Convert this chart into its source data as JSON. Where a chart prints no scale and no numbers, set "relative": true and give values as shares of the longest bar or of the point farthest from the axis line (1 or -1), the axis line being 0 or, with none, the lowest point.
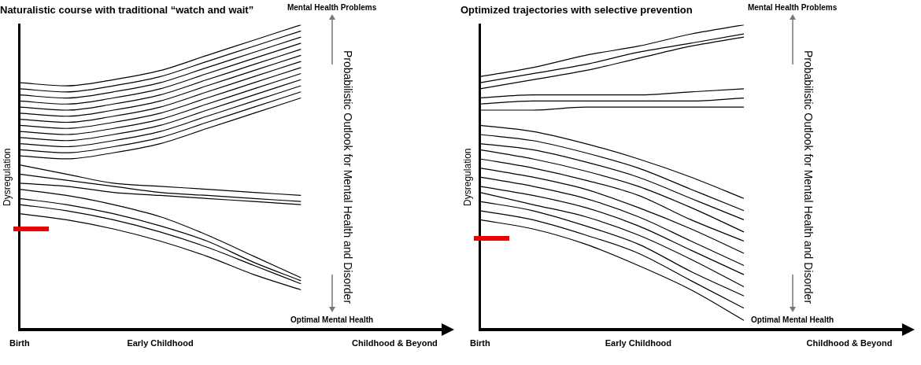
{
  "chart_data": [
    {
      "type": "line",
      "title": "Naturalistic course with traditional “watch and wait”",
      "ylabel": "Dysregulation",
      "relative": true,
      "marker": "none",
      "line_style": "solid",
      "categories": [
        "Birth",
        null,
        null,
        "Early Childhood",
        null,
        null,
        null,
        null,
        "Childhood & Beyond",
        null
      ],
      "annotations": [
        "Mental Health Problems",
        "Probabilistic Outlook for Mental Health and Disorder",
        "Optimal Mental Health"
      ],
      "series": [
        {
          "color": "#000000",
          "values": [
            0.81,
            0.8,
            0.82,
            0.85,
            0.9,
            0.95,
            1.0,
            null,
            null,
            null
          ]
        },
        {
          "color": "#000000",
          "values": [
            0.79,
            0.78,
            0.8,
            0.83,
            0.88,
            0.93,
            0.98,
            null,
            null,
            null
          ]
        },
        {
          "color": "#000000",
          "values": [
            0.77,
            0.76,
            0.78,
            0.81,
            0.86,
            0.91,
            0.96,
            null,
            null,
            null
          ]
        },
        {
          "color": "#000000",
          "values": [
            0.75,
            0.74,
            0.76,
            0.79,
            0.84,
            0.89,
            0.94,
            null,
            null,
            null
          ]
        },
        {
          "color": "#000000",
          "values": [
            0.73,
            0.72,
            0.74,
            0.77,
            0.82,
            0.87,
            0.92,
            null,
            null,
            null
          ]
        },
        {
          "color": "#000000",
          "values": [
            0.71,
            0.7,
            0.72,
            0.75,
            0.8,
            0.85,
            0.9,
            null,
            null,
            null
          ]
        },
        {
          "color": "#000000",
          "values": [
            0.69,
            0.68,
            0.7,
            0.73,
            0.78,
            0.83,
            0.88,
            null,
            null,
            null
          ]
        },
        {
          "color": "#000000",
          "values": [
            0.67,
            0.66,
            0.68,
            0.71,
            0.76,
            0.81,
            0.86,
            null,
            null,
            null
          ]
        },
        {
          "color": "#000000",
          "values": [
            0.65,
            0.64,
            0.66,
            0.69,
            0.74,
            0.79,
            0.84,
            null,
            null,
            null
          ]
        },
        {
          "color": "#000000",
          "values": [
            0.63,
            0.62,
            0.64,
            0.67,
            0.72,
            0.77,
            0.82,
            null,
            null,
            null
          ]
        },
        {
          "color": "#000000",
          "values": [
            0.61,
            0.6,
            0.62,
            0.65,
            0.7,
            0.75,
            0.8,
            null,
            null,
            null
          ]
        },
        {
          "color": "#000000",
          "values": [
            0.59,
            0.58,
            0.6,
            0.63,
            0.68,
            0.73,
            0.78,
            null,
            null,
            null
          ]
        },
        {
          "color": "#000000",
          "values": [
            0.57,
            0.56,
            0.58,
            0.61,
            0.66,
            0.71,
            0.76,
            null,
            null,
            null
          ]
        },
        {
          "color": "#000000",
          "values": [
            0.54,
            0.51,
            0.48,
            0.47,
            0.46,
            0.45,
            0.44,
            null,
            null,
            null
          ]
        },
        {
          "color": "#000000",
          "values": [
            0.51,
            0.49,
            0.47,
            0.45,
            0.44,
            0.43,
            0.42,
            null,
            null,
            null
          ]
        },
        {
          "color": "#000000",
          "values": [
            0.48,
            0.47,
            0.45,
            0.44,
            0.43,
            0.42,
            0.41,
            null,
            null,
            null
          ]
        },
        {
          "color": "#000000",
          "values": [
            0.46,
            0.44,
            0.41,
            0.37,
            0.31,
            0.24,
            0.17,
            null,
            null,
            null
          ]
        },
        {
          "color": "#000000",
          "values": [
            0.43,
            0.41,
            0.38,
            0.34,
            0.29,
            0.22,
            0.16,
            null,
            null,
            null
          ]
        },
        {
          "color": "#000000",
          "values": [
            0.41,
            0.39,
            0.36,
            0.32,
            0.27,
            0.21,
            0.15,
            null,
            null,
            null
          ]
        },
        {
          "color": "#000000",
          "values": [
            0.38,
            0.36,
            0.33,
            0.29,
            0.24,
            0.18,
            0.13,
            null,
            null,
            null
          ]
        }
      ]
    },
    {
      "type": "line",
      "title": "Optimized trajectories with selective prevention",
      "ylabel": "Dysregulation",
      "relative": true,
      "marker": "none",
      "line_style": "solid",
      "categories": [
        "Birth",
        null,
        null,
        "Early Childhood",
        null,
        null,
        null,
        "Childhood & Beyond",
        null
      ],
      "annotations": [
        "Mental Health Problems",
        "Probabilistic Outlook for Mental Health and Disorder",
        "Optimal Mental Health"
      ],
      "series": [
        {
          "color": "#000000",
          "values": [
            0.83,
            0.86,
            0.9,
            0.93,
            0.97,
            1.0,
            null,
            null,
            null
          ]
        },
        {
          "color": "#000000",
          "values": [
            0.81,
            0.84,
            0.87,
            0.91,
            0.94,
            0.97,
            null,
            null,
            null
          ]
        },
        {
          "color": "#000000",
          "values": [
            0.79,
            0.82,
            0.85,
            0.89,
            0.93,
            0.96,
            null,
            null,
            null
          ]
        },
        {
          "color": "#000000",
          "values": [
            0.76,
            0.77,
            0.77,
            0.77,
            0.78,
            0.79,
            null,
            null,
            null
          ]
        },
        {
          "color": "#000000",
          "values": [
            0.74,
            0.75,
            0.75,
            0.75,
            0.75,
            0.76,
            null,
            null,
            null
          ]
        },
        {
          "color": "#000000",
          "values": [
            0.72,
            0.72,
            0.73,
            0.73,
            0.73,
            0.73,
            null,
            null,
            null
          ]
        },
        {
          "color": "#000000",
          "values": [
            0.67,
            0.65,
            0.61,
            0.56,
            0.5,
            0.43,
            null,
            null,
            null
          ]
        },
        {
          "color": "#000000",
          "values": [
            0.64,
            0.62,
            0.58,
            0.53,
            0.46,
            0.39,
            null,
            null,
            null
          ]
        },
        {
          "color": "#000000",
          "values": [
            0.61,
            0.59,
            0.55,
            0.5,
            0.43,
            0.36,
            null,
            null,
            null
          ]
        },
        {
          "color": "#000000",
          "values": [
            0.59,
            0.56,
            0.52,
            0.47,
            0.4,
            0.32,
            null,
            null,
            null
          ]
        },
        {
          "color": "#000000",
          "values": [
            0.56,
            0.53,
            0.49,
            0.44,
            0.36,
            0.29,
            null,
            null,
            null
          ]
        },
        {
          "color": "#000000",
          "values": [
            0.53,
            0.5,
            0.46,
            0.4,
            0.33,
            0.25,
            null,
            null,
            null
          ]
        },
        {
          "color": "#000000",
          "values": [
            0.5,
            0.47,
            0.43,
            0.37,
            0.29,
            0.21,
            null,
            null,
            null
          ]
        },
        {
          "color": "#000000",
          "values": [
            0.47,
            0.44,
            0.4,
            0.34,
            0.26,
            0.18,
            null,
            null,
            null
          ]
        },
        {
          "color": "#000000",
          "values": [
            0.45,
            0.41,
            0.37,
            0.31,
            0.23,
            0.14,
            null,
            null,
            null
          ]
        },
        {
          "color": "#000000",
          "values": [
            0.42,
            0.39,
            0.34,
            0.28,
            0.19,
            0.11,
            null,
            null,
            null
          ]
        },
        {
          "color": "#000000",
          "values": [
            0.39,
            0.36,
            0.31,
            0.25,
            0.16,
            0.07,
            null,
            null,
            null
          ]
        },
        {
          "color": "#000000",
          "values": [
            0.36,
            0.33,
            0.28,
            0.21,
            0.13,
            0.03,
            null,
            null,
            null
          ]
        }
      ]
    }
  ]
}
